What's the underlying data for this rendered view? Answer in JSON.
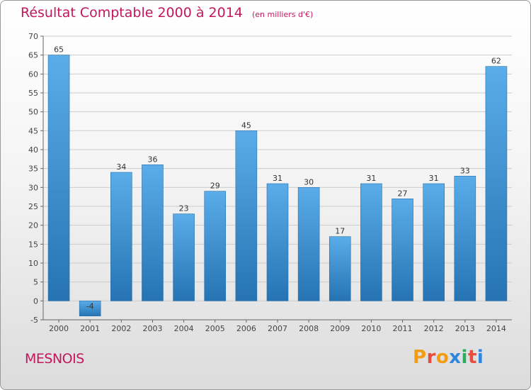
{
  "header": {
    "title": "Résultat Comptable 2000 à 2014",
    "unit": "(en milliers d'€)"
  },
  "footer": {
    "commune": "MESNOIS",
    "logo_text": "Proxiti"
  },
  "colors": {
    "title": "#c2185b",
    "bar_top": "#5aade8",
    "bar_bottom": "#2573b3",
    "grid": "#cccccc",
    "logo": [
      "#f39c12",
      "#e74c3c",
      "#f39c12",
      "#2e86de",
      "#27ae60",
      "#e74c3c",
      "#2e86de"
    ]
  },
  "chart_data": {
    "type": "bar",
    "title": "Résultat Comptable 2000 à 2014",
    "subtitle": "(en milliers d'€)",
    "categories": [
      "2000",
      "2001",
      "2002",
      "2003",
      "2004",
      "2005",
      "2006",
      "2007",
      "2008",
      "2009",
      "2010",
      "2011",
      "2012",
      "2013",
      "2014"
    ],
    "values": [
      65,
      -4,
      34,
      36,
      23,
      29,
      45,
      31,
      30,
      17,
      31,
      27,
      31,
      33,
      62
    ],
    "ylim": [
      -5,
      70
    ],
    "yticks": [
      -5,
      0,
      5,
      10,
      15,
      20,
      25,
      30,
      35,
      40,
      45,
      50,
      55,
      60,
      65,
      70
    ],
    "grid": true,
    "legend": "none"
  }
}
